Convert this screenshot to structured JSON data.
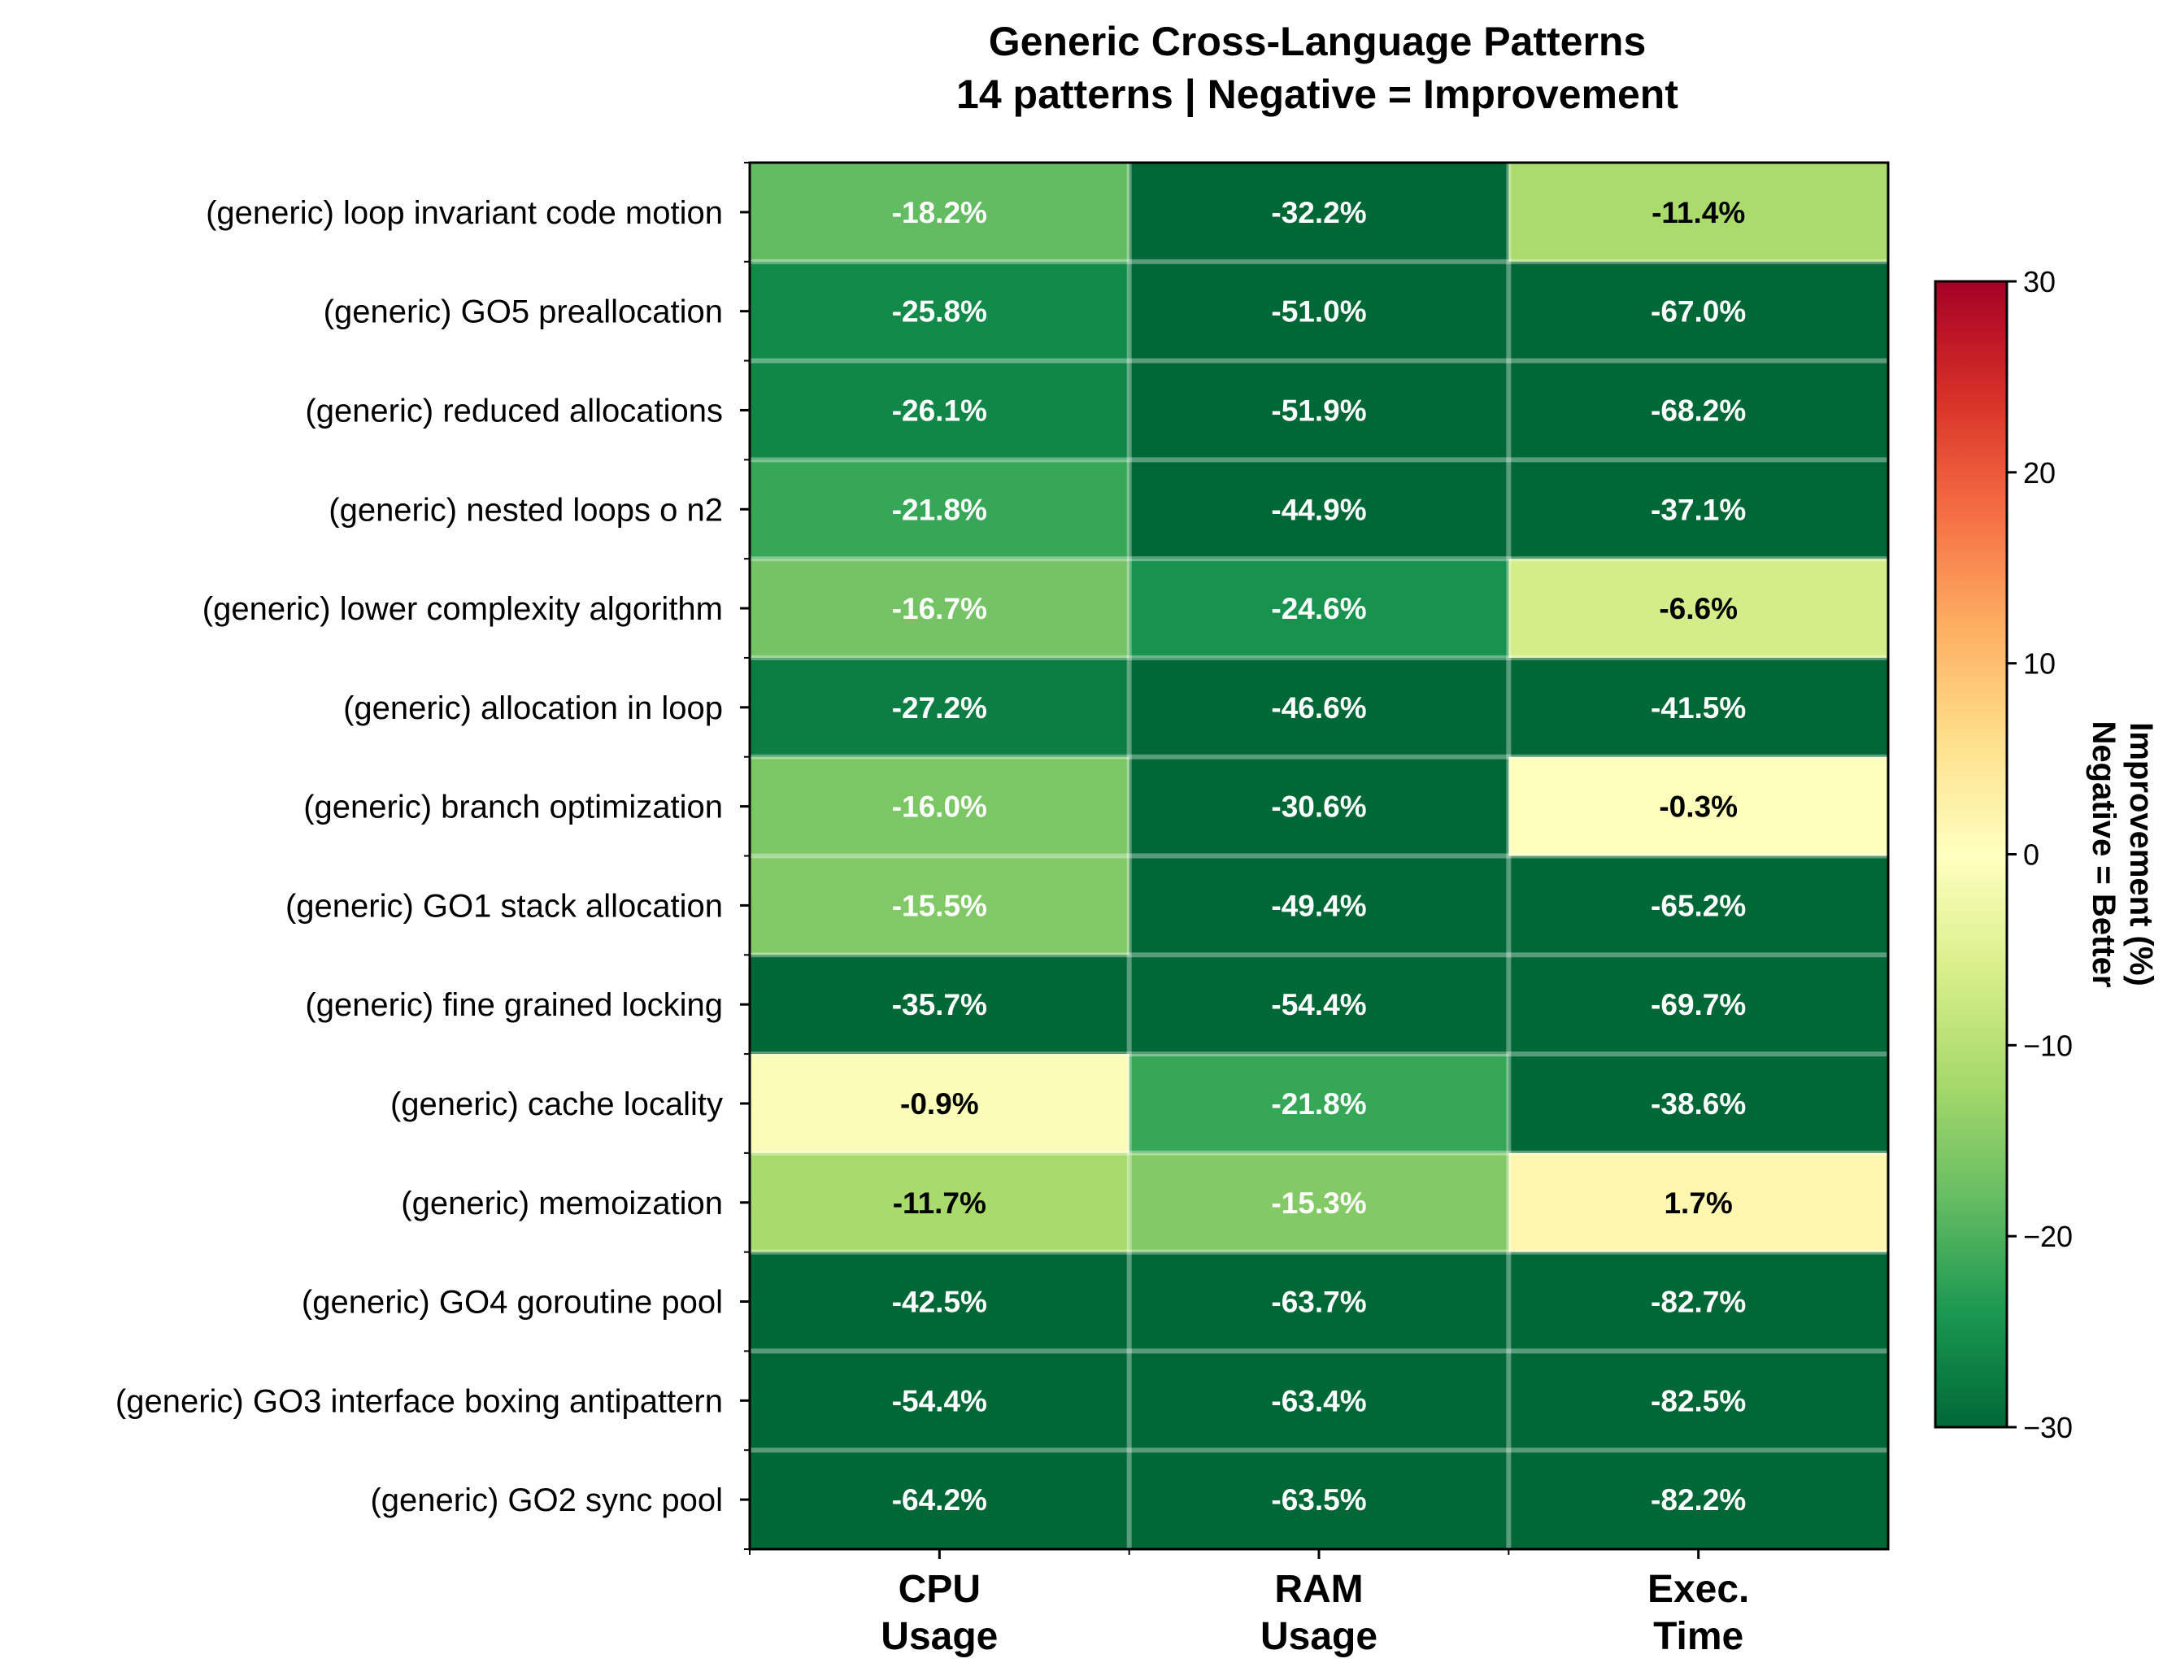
{
  "chart_data": {
    "type": "heatmap",
    "title": "Generic Cross-Language Patterns",
    "subtitle": "14 patterns | Negative = Improvement",
    "columns": [
      {
        "line1": "CPU",
        "line2": "Usage"
      },
      {
        "line1": "RAM",
        "line2": "Usage"
      },
      {
        "line1": "Exec.",
        "line2": "Time"
      }
    ],
    "rows": [
      "(generic) loop invariant code motion",
      "(generic) GO5 preallocation",
      "(generic) reduced allocations",
      "(generic) nested loops o n2",
      "(generic) lower complexity algorithm",
      "(generic) allocation in loop",
      "(generic) branch optimization",
      "(generic) GO1 stack allocation",
      "(generic) fine grained locking",
      "(generic) cache locality",
      "(generic) memoization",
      "(generic) GO4 goroutine pool",
      "(generic) GO3 interface boxing antipattern",
      "(generic) GO2 sync pool"
    ],
    "values": [
      [
        -18.2,
        -32.2,
        -11.4
      ],
      [
        -25.8,
        -51.0,
        -67.0
      ],
      [
        -26.1,
        -51.9,
        -68.2
      ],
      [
        -21.8,
        -44.9,
        -37.1
      ],
      [
        -16.7,
        -24.6,
        -6.6
      ],
      [
        -27.2,
        -46.6,
        -41.5
      ],
      [
        -16.0,
        -30.6,
        -0.3
      ],
      [
        -15.5,
        -49.4,
        -65.2
      ],
      [
        -35.7,
        -54.4,
        -69.7
      ],
      [
        -0.9,
        -21.8,
        -38.6
      ],
      [
        -11.7,
        -15.3,
        1.7
      ],
      [
        -42.5,
        -63.7,
        -82.7
      ],
      [
        -54.4,
        -63.4,
        -82.5
      ],
      [
        -64.2,
        -63.5,
        -82.2
      ]
    ],
    "labels": [
      [
        "-18.2%",
        "-32.2%",
        "-11.4%"
      ],
      [
        "-25.8%",
        "-51.0%",
        "-67.0%"
      ],
      [
        "-26.1%",
        "-51.9%",
        "-68.2%"
      ],
      [
        "-21.8%",
        "-44.9%",
        "-37.1%"
      ],
      [
        "-16.7%",
        "-24.6%",
        "-6.6%"
      ],
      [
        "-27.2%",
        "-46.6%",
        "-41.5%"
      ],
      [
        "-16.0%",
        "-30.6%",
        "-0.3%"
      ],
      [
        "-15.5%",
        "-49.4%",
        "-65.2%"
      ],
      [
        "-35.7%",
        "-54.4%",
        "-69.7%"
      ],
      [
        "-0.9%",
        "-21.8%",
        "-38.6%"
      ],
      [
        "-11.7%",
        "-15.3%",
        "1.7%"
      ],
      [
        "-42.5%",
        "-63.7%",
        "-82.7%"
      ],
      [
        "-54.4%",
        "-63.4%",
        "-82.5%"
      ],
      [
        "-64.2%",
        "-63.5%",
        "-82.2%"
      ]
    ],
    "colorscale": "RdYlGn_r",
    "vmin": -30,
    "vmax": 30,
    "colorbar": {
      "ticks": [
        30,
        20,
        10,
        0,
        -10,
        -20,
        -30
      ],
      "tick_labels": [
        "30",
        "20",
        "10",
        "0",
        "−10",
        "−20",
        "−30"
      ],
      "label_line1": "Improvement (%)",
      "label_line2": "Negative = Better"
    }
  }
}
